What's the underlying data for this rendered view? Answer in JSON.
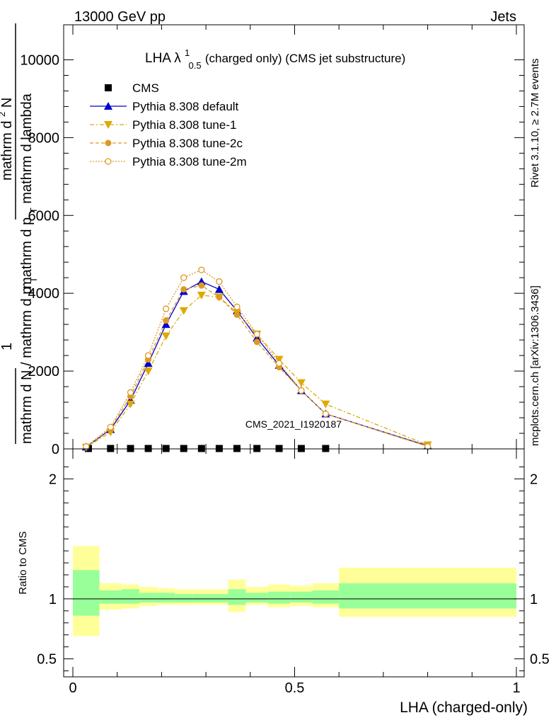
{
  "header": {
    "left": "13000 GeV pp",
    "right": "Jets"
  },
  "side_labels": {
    "rivet": "Rivet 3.1.10, ≥ 2.7M events",
    "mcplots": "mcplots.cern.ch [arXiv:1306.3436]"
  },
  "chart_data": [
    {
      "type": "line",
      "title_main": "LHA λ",
      "title_sup": "1",
      "title_sub": "0.5",
      "title_rest": " (charged only) (CMS jet substructure)",
      "ylabel_parts": {
        "numerator_top": "mathrm d",
        "numerator_sup": "2",
        "numerator_N": "N",
        "denominator": "mathrm d p",
        "denominator_sub": "T",
        "denominator_rest": " mathrm d lambda",
        "one": "1",
        "lower_denominator": "mathrm d N / mathrm d p",
        "lower_sub": "T"
      },
      "watermark": "CMS_2021_I1920187",
      "xlim": [
        0,
        1
      ],
      "ylim": [
        0,
        10500
      ],
      "yticks": [
        0,
        2000,
        4000,
        6000,
        8000,
        10000
      ],
      "ytick_labels": [
        "0",
        "2000",
        "4000",
        "6000",
        "8000",
        "10000"
      ],
      "legend_position": "top-left",
      "series": [
        {
          "name": "CMS",
          "color": "#000000",
          "marker": "square",
          "x": [
            0.035,
            0.085,
            0.13,
            0.17,
            0.21,
            0.25,
            0.29,
            0.33,
            0.37,
            0.415,
            0.465,
            0.515,
            0.57
          ],
          "y": [
            10,
            10,
            10,
            10,
            10,
            10,
            10,
            10,
            10,
            10,
            10,
            10,
            10
          ]
        },
        {
          "name": "Pythia 8.308 default",
          "color": "#0000cc",
          "marker": "triangle-up",
          "dash": "",
          "x": [
            0.03,
            0.085,
            0.13,
            0.17,
            0.21,
            0.25,
            0.29,
            0.33,
            0.37,
            0.415,
            0.465,
            0.515,
            0.57,
            0.8
          ],
          "y": [
            50,
            500,
            1250,
            2200,
            3200,
            4050,
            4300,
            4100,
            3550,
            2850,
            2150,
            1500,
            900,
            80
          ]
        },
        {
          "name": "Pythia 8.308 tune-1",
          "color": "#ddaa00",
          "marker": "triangle-down",
          "dash": "6,3,2,3",
          "x": [
            0.03,
            0.085,
            0.13,
            0.17,
            0.21,
            0.25,
            0.29,
            0.33,
            0.37,
            0.415,
            0.465,
            0.515,
            0.57,
            0.8
          ],
          "y": [
            40,
            430,
            1150,
            2000,
            2900,
            3550,
            3950,
            3900,
            3500,
            2950,
            2300,
            1700,
            1150,
            100
          ]
        },
        {
          "name": "Pythia 8.308 tune-2c",
          "color": "#dd9922",
          "marker": "circle",
          "dash": "5,3",
          "x": [
            0.03,
            0.085,
            0.13,
            0.17,
            0.21,
            0.25,
            0.29,
            0.33,
            0.37,
            0.415,
            0.465,
            0.515,
            0.57,
            0.8
          ],
          "y": [
            50,
            520,
            1350,
            2300,
            3300,
            4100,
            4200,
            3900,
            3450,
            2750,
            2100,
            1500,
            900,
            70
          ]
        },
        {
          "name": "Pythia 8.308 tune-2m",
          "color": "#dd9922",
          "marker": "open-circle",
          "dash": "2,2",
          "x": [
            0.03,
            0.085,
            0.13,
            0.17,
            0.21,
            0.25,
            0.29,
            0.33,
            0.37,
            0.415,
            0.465,
            0.515,
            0.57,
            0.8
          ],
          "y": [
            60,
            560,
            1450,
            2400,
            3600,
            4400,
            4600,
            4300,
            3650,
            2950,
            2200,
            1500,
            900,
            60
          ]
        }
      ]
    },
    {
      "type": "area",
      "ylabel": "Ratio to CMS",
      "xlabel": "LHA (charged-only)",
      "xlim": [
        0,
        1
      ],
      "ylim": [
        0.35,
        2.25
      ],
      "yticks": [
        0.5,
        1,
        2
      ],
      "ytick_labels": [
        "0.5",
        "1",
        "2"
      ],
      "xticks": [
        0,
        0.5,
        1
      ],
      "xtick_labels": [
        "0",
        "0.5",
        "1"
      ],
      "reference_line": 1,
      "bands": {
        "bin_edges": [
          0.0,
          0.06,
          0.11,
          0.15,
          0.19,
          0.23,
          0.27,
          0.31,
          0.35,
          0.39,
          0.44,
          0.49,
          0.54,
          0.6,
          1.0
        ],
        "outer_lo": [
          0.69,
          0.91,
          0.92,
          0.94,
          0.95,
          0.95,
          0.95,
          0.95,
          0.89,
          0.95,
          0.93,
          0.94,
          0.93,
          0.85
        ],
        "outer_hi": [
          1.44,
          1.13,
          1.12,
          1.1,
          1.09,
          1.08,
          1.08,
          1.08,
          1.16,
          1.1,
          1.12,
          1.11,
          1.13,
          1.26
        ],
        "inner_lo": [
          0.86,
          0.96,
          0.96,
          0.97,
          0.97,
          0.97,
          0.97,
          0.97,
          0.95,
          0.97,
          0.96,
          0.97,
          0.96,
          0.92
        ],
        "inner_hi": [
          1.24,
          1.07,
          1.08,
          1.05,
          1.05,
          1.04,
          1.04,
          1.04,
          1.08,
          1.05,
          1.06,
          1.06,
          1.07,
          1.13
        ],
        "outer_color": "#ffff99",
        "inner_color": "#99ff99"
      }
    }
  ]
}
